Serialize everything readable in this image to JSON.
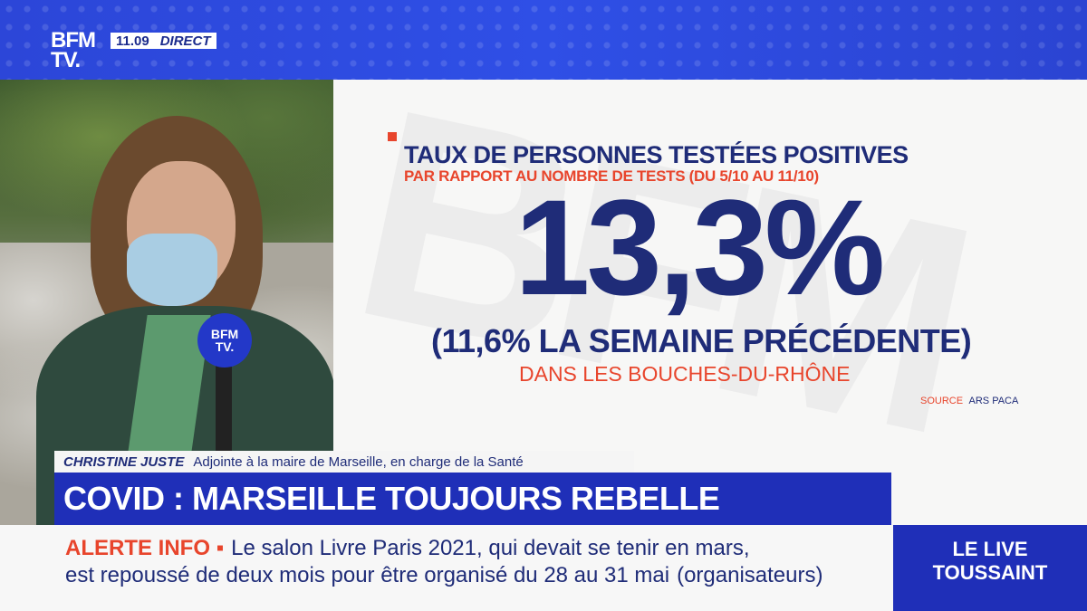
{
  "channel": {
    "logo_line1": "BFM",
    "logo_line2": "TV.",
    "time": "11.09",
    "live_label": "DIRECT"
  },
  "infographic": {
    "title": "TAUX DE PERSONNES TESTÉES POSITIVES",
    "subtitle": "PAR RAPPORT AU NOMBRE DE TESTS (DU 5/10 AU 11/10)",
    "value": "13,3%",
    "previous_week": "(11,6% LA SEMAINE PRÉCÉDENTE)",
    "region": "DANS LES BOUCHES-DU-RHÔNE",
    "source_label": "SOURCE",
    "source_value": "ARS PACA",
    "watermark": "BFM"
  },
  "microphone": {
    "label_line1": "BFM",
    "label_line2": "TV."
  },
  "lower_third": {
    "name": "CHRISTINE JUSTE",
    "role": "Adjointe à la maire de Marseille, en charge de la Santé"
  },
  "headline": "COVID : MARSEILLE TOUJOURS REBELLE",
  "ticker": {
    "alert_label": "ALERTE INFO ▪",
    "line1": "Le salon Livre Paris 2021, qui devait se tenir en mars,",
    "line2": "est repoussé de deux mois pour être organisé du 28 au 31 mai",
    "source": "(organisateurs)"
  },
  "live_box": {
    "line1": "LE LIVE",
    "line2": "TOUSSAINT"
  }
}
